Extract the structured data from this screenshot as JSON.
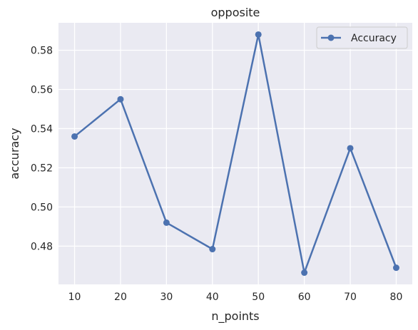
{
  "chart_data": {
    "type": "line",
    "title": "opposite",
    "xlabel": "n_points",
    "ylabel": "accuracy",
    "x": [
      10,
      20,
      30,
      40,
      50,
      60,
      70,
      80
    ],
    "series": [
      {
        "name": "Accuracy",
        "values": [
          0.536,
          0.555,
          0.492,
          0.4785,
          0.588,
          0.4665,
          0.53,
          0.469
        ],
        "color": "#4c72b0"
      }
    ],
    "xlim": [
      6.5,
      83.5
    ],
    "ylim": [
      0.4605,
      0.594
    ],
    "xticks": [
      10,
      20,
      30,
      40,
      50,
      60,
      70,
      80
    ],
    "xtick_labels": [
      "10",
      "20",
      "30",
      "40",
      "50",
      "60",
      "70",
      "80"
    ],
    "yticks": [
      0.48,
      0.5,
      0.52,
      0.54,
      0.56,
      0.58
    ],
    "ytick_labels": [
      "0.48",
      "0.50",
      "0.52",
      "0.54",
      "0.56",
      "0.58"
    ],
    "grid": true,
    "legend": "top-right",
    "background_color": "#eaeaf2",
    "grid_color": "#ffffff"
  }
}
